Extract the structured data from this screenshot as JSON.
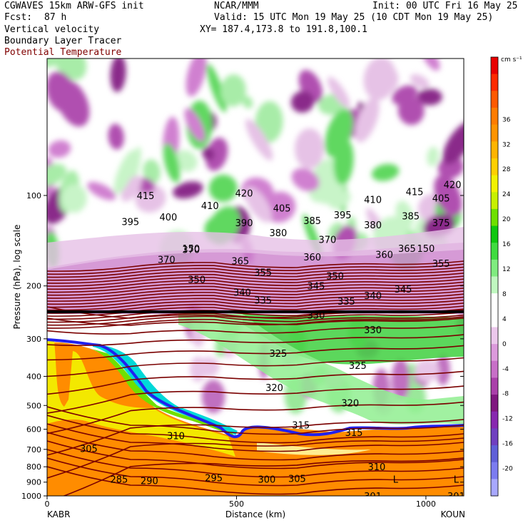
{
  "header": {
    "model": "CGWAVES 15km ARW-GFS init",
    "org": "NCAR/MMM",
    "init": "Init: 00 UTC Fri 16 May 25",
    "fcst_label": "Fcst:",
    "fcst_value": "87 h",
    "valid": "Valid: 15 UTC Mon 19 May 25 (10 CDT Mon 19 May 25)",
    "field1": "Vertical velocity",
    "xy": "XY= 187.4,173.8 to 191.8,100.1",
    "field2": "Boundary Layer Tracer",
    "field3": "Potential Temperature"
  },
  "chart_data": {
    "type": "cross-section",
    "xlabel": "Distance (km)",
    "ylabel": "Pressure (hPa), log scale",
    "xlim": [
      0,
      1100
    ],
    "ylim": [
      1000,
      35
    ],
    "yscale": "log",
    "x_ticks": [
      "0",
      "500",
      "1000"
    ],
    "y_ticks": [
      100,
      200,
      300,
      400,
      500,
      600,
      700,
      800,
      900,
      1000
    ],
    "left_station": "KABR",
    "right_station": "KOUN",
    "colorbar": {
      "unit": "cm s⁻¹",
      "labels": [
        36,
        32,
        28,
        24,
        20,
        16,
        12,
        8,
        4,
        0,
        -4,
        -8,
        -12,
        -16,
        -20
      ],
      "colors": [
        "#e80000",
        "#ff2a00",
        "#ff5a00",
        "#ff7c00",
        "#ff9400",
        "#ffb400",
        "#ffd000",
        "#f2f200",
        "#c8f000",
        "#6fe000",
        "#10c810",
        "#40dc40",
        "#80ec80",
        "#c0f8c0",
        "#ffffff",
        "#ffffff",
        "#ecc8ec",
        "#dc9adc",
        "#c870c8",
        "#aa40aa",
        "#801880",
        "#8828b0",
        "#7040c0",
        "#6060d8",
        "#7c7cf0",
        "#a8a8ff"
      ]
    },
    "theta_labels": [
      {
        "value": "420",
        "x": 520,
        "p": 98
      },
      {
        "value": "420",
        "x": 1070,
        "p": 92
      },
      {
        "value": "415",
        "x": 260,
        "p": 100
      },
      {
        "value": "415",
        "x": 970,
        "p": 97
      },
      {
        "value": "410",
        "x": 430,
        "p": 108
      },
      {
        "value": "410",
        "x": 860,
        "p": 103
      },
      {
        "value": "405",
        "x": 620,
        "p": 110
      },
      {
        "value": "405",
        "x": 1040,
        "p": 102
      },
      {
        "value": "400",
        "x": 320,
        "p": 118
      },
      {
        "value": "395",
        "x": 220,
        "p": 122
      },
      {
        "value": "395",
        "x": 780,
        "p": 116
      },
      {
        "value": "390",
        "x": 520,
        "p": 123
      },
      {
        "value": "385",
        "x": 700,
        "p": 121
      },
      {
        "value": "385",
        "x": 960,
        "p": 117
      },
      {
        "value": "380",
        "x": 610,
        "p": 133
      },
      {
        "value": "380",
        "x": 860,
        "p": 125
      },
      {
        "value": "375",
        "x": 1040,
        "p": 123
      },
      {
        "value": "370",
        "x": 380,
        "p": 151
      },
      {
        "value": "370",
        "x": 315,
        "p": 163
      },
      {
        "value": "370",
        "x": 740,
        "p": 140
      },
      {
        "value": "365",
        "x": 510,
        "p": 165
      },
      {
        "value": "365",
        "x": 950,
        "p": 150
      },
      {
        "value": "360",
        "x": 700,
        "p": 160
      },
      {
        "value": "360",
        "x": 890,
        "p": 157
      },
      {
        "value": "355",
        "x": 570,
        "p": 180
      },
      {
        "value": "355",
        "x": 1040,
        "p": 168
      },
      {
        "value": "350",
        "x": 395,
        "p": 190
      },
      {
        "value": "350",
        "x": 760,
        "p": 185
      },
      {
        "value": "345",
        "x": 710,
        "p": 200
      },
      {
        "value": "345",
        "x": 940,
        "p": 205
      },
      {
        "value": "340",
        "x": 515,
        "p": 210
      },
      {
        "value": "340",
        "x": 860,
        "p": 215
      },
      {
        "value": "335",
        "x": 570,
        "p": 223
      },
      {
        "value": "335",
        "x": 790,
        "p": 225
      },
      {
        "value": "330",
        "x": 710,
        "p": 250
      },
      {
        "value": "330",
        "x": 860,
        "p": 280
      },
      {
        "value": "325",
        "x": 610,
        "p": 335
      },
      {
        "value": "325",
        "x": 820,
        "p": 368
      },
      {
        "value": "320",
        "x": 600,
        "p": 435
      },
      {
        "value": "320",
        "x": 800,
        "p": 490
      },
      {
        "value": "315",
        "x": 670,
        "p": 580
      },
      {
        "value": "315",
        "x": 810,
        "p": 615
      },
      {
        "value": "310",
        "x": 340,
        "p": 630
      },
      {
        "value": "310",
        "x": 870,
        "p": 800
      },
      {
        "value": "305",
        "x": 110,
        "p": 695
      },
      {
        "value": "305",
        "x": 660,
        "p": 875
      },
      {
        "value": "300",
        "x": 580,
        "p": 880
      },
      {
        "value": "295",
        "x": 440,
        "p": 870
      },
      {
        "value": "290",
        "x": 270,
        "p": 890
      },
      {
        "value": "285",
        "x": 190,
        "p": 880
      },
      {
        "value": "301",
        "x": 860,
        "p": 1000
      },
      {
        "value": "301",
        "x": 1080,
        "p": 1000
      },
      {
        "value": "L",
        "x": 920,
        "p": 880
      },
      {
        "value": "L",
        "x": 1080,
        "p": 880
      },
      {
        "value": "150",
        "x": 380,
        "p": 150
      },
      {
        "value": "150",
        "x": 1000,
        "p": 150
      }
    ]
  }
}
